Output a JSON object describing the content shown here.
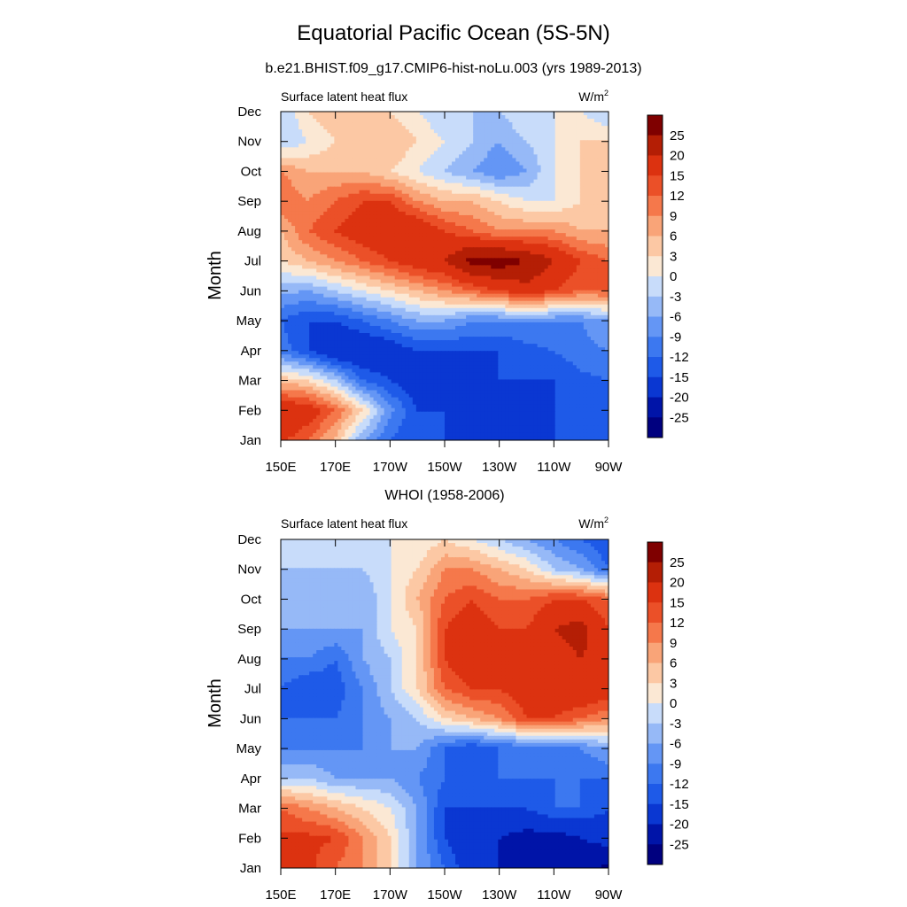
{
  "figure": {
    "title": "Equatorial Pacific Ocean (5S-5N)"
  },
  "chart_data": [
    {
      "type": "heatmap",
      "title": "b.e21.BHIST.f09_g17.CMIP6-hist-noLu.003 (yrs 1989-2013)",
      "variable": "Surface latent heat flux",
      "units_base": "W/m",
      "units_exp": "2",
      "ylabel": "Month",
      "x_ticks": [
        "150E",
        "170E",
        "170W",
        "150W",
        "130W",
        "110W",
        "90W"
      ],
      "x_lon": [
        150,
        170,
        190,
        210,
        230,
        250,
        270
      ],
      "y_ticks": [
        "Jan",
        "Feb",
        "Mar",
        "Apr",
        "May",
        "Jun",
        "Jul",
        "Aug",
        "Sep",
        "Oct",
        "Nov",
        "Dec"
      ],
      "grid": false,
      "rows_jan_to_dec": [
        [
          16,
          12,
          5,
          -6,
          -12,
          -15,
          -15,
          -15,
          -15,
          -15,
          -15,
          -13,
          -12
        ],
        [
          20,
          18,
          12,
          3,
          -8,
          -15,
          -15,
          -18,
          -20,
          -18,
          -15,
          -13,
          -12
        ],
        [
          5,
          3,
          -3,
          -12,
          -15,
          -18,
          -20,
          -20,
          -15,
          -15,
          -15,
          -13,
          -12
        ],
        [
          -10,
          -15,
          -20,
          -20,
          -18,
          -15,
          -15,
          -15,
          -15,
          -13,
          -12,
          -10,
          -9
        ],
        [
          -12,
          -15,
          -15,
          -12,
          -9,
          -6,
          -6,
          -9,
          -9,
          -9,
          -9,
          -9,
          -6
        ],
        [
          -5,
          -6,
          -3,
          0,
          3,
          6,
          9,
          12,
          15,
          18,
          15,
          12,
          12
        ],
        [
          3,
          6,
          9,
          12,
          15,
          18,
          20,
          27,
          28,
          25,
          20,
          15,
          12
        ],
        [
          6,
          12,
          15,
          18,
          20,
          20,
          15,
          12,
          9,
          9,
          9,
          6,
          6
        ],
        [
          12,
          9,
          12,
          15,
          15,
          9,
          6,
          6,
          3,
          0,
          0,
          3,
          3
        ],
        [
          9,
          6,
          6,
          6,
          3,
          0,
          -3,
          -6,
          -9,
          -6,
          0,
          3,
          3
        ],
        [
          -3,
          0,
          3,
          6,
          6,
          3,
          0,
          -3,
          -6,
          -3,
          0,
          3,
          3
        ],
        [
          -3,
          3,
          6,
          6,
          3,
          0,
          -3,
          -3,
          -3,
          0,
          0,
          0,
          -3
        ]
      ],
      "lon_grid": [
        150,
        160,
        170,
        180,
        190,
        200,
        210,
        220,
        230,
        240,
        250,
        260,
        270
      ],
      "colorbar_labels": [
        "25",
        "20",
        "15",
        "12",
        "9",
        "6",
        "3",
        "0",
        "-3",
        "-6",
        "-9",
        "-12",
        "-15",
        "-20",
        "-25"
      ]
    },
    {
      "type": "heatmap",
      "title": "WHOI (1958-2006)",
      "variable": "Surface latent heat flux",
      "units_base": "W/m",
      "units_exp": "2",
      "ylabel": "Month",
      "x_ticks": [
        "150E",
        "170E",
        "170W",
        "150W",
        "130W",
        "110W",
        "90W"
      ],
      "x_lon": [
        150,
        170,
        190,
        210,
        230,
        250,
        270
      ],
      "y_ticks": [
        "Jan",
        "Feb",
        "Mar",
        "Apr",
        "May",
        "Jun",
        "Jul",
        "Aug",
        "Sep",
        "Oct",
        "Nov",
        "Dec"
      ],
      "grid": false,
      "rows_jan_to_dec": [
        [
          15,
          16,
          12,
          9,
          3,
          -6,
          -12,
          -18,
          -20,
          -20,
          -22,
          -24,
          -26
        ],
        [
          16,
          16,
          15,
          9,
          3,
          -6,
          -15,
          -18,
          -20,
          -22,
          -22,
          -20,
          -18
        ],
        [
          12,
          9,
          6,
          3,
          0,
          -6,
          -15,
          -15,
          -15,
          -15,
          -12,
          -12,
          -15
        ],
        [
          -3,
          -3,
          -6,
          -6,
          -6,
          -9,
          -12,
          -15,
          -12,
          -12,
          -12,
          -12,
          -12
        ],
        [
          -9,
          -9,
          -9,
          -9,
          -6,
          -6,
          -12,
          -15,
          -12,
          -12,
          -12,
          -9,
          -6
        ],
        [
          -12,
          -12,
          -12,
          -9,
          -6,
          -3,
          3,
          6,
          9,
          15,
          15,
          12,
          9
        ],
        [
          -12,
          -15,
          -14,
          -9,
          -3,
          3,
          12,
          15,
          15,
          18,
          18,
          20,
          18
        ],
        [
          -9,
          -9,
          -12,
          -6,
          -3,
          3,
          15,
          20,
          20,
          18,
          18,
          20,
          18
        ],
        [
          -6,
          -6,
          -6,
          -6,
          0,
          3,
          15,
          18,
          15,
          15,
          20,
          22,
          15
        ],
        [
          -3,
          -6,
          -6,
          -6,
          0,
          6,
          12,
          15,
          12,
          12,
          15,
          15,
          12
        ],
        [
          -3,
          -3,
          -3,
          -3,
          0,
          3,
          9,
          9,
          6,
          3,
          -3,
          -6,
          -12
        ],
        [
          0,
          -3,
          -3,
          0,
          0,
          0,
          3,
          0,
          -3,
          -6,
          -9,
          -12,
          -15
        ]
      ],
      "lon_grid": [
        150,
        160,
        170,
        180,
        190,
        200,
        210,
        220,
        230,
        240,
        250,
        260,
        270
      ],
      "colorbar_labels": [
        "25",
        "20",
        "15",
        "12",
        "9",
        "6",
        "3",
        "0",
        "-3",
        "-6",
        "-9",
        "-12",
        "-15",
        "-20",
        "-25"
      ]
    }
  ],
  "colors": {
    "levels": [
      -25,
      -20,
      -15,
      -12,
      -9,
      -6,
      -3,
      0,
      3,
      6,
      9,
      12,
      15,
      20,
      25
    ],
    "palette": [
      "#00007f",
      "#0014a8",
      "#0a37d2",
      "#1e5ae8",
      "#3c78f0",
      "#6496f5",
      "#96b9f7",
      "#c8dcfa",
      "#fbe8d4",
      "#fcc8a4",
      "#f9a478",
      "#f5784b",
      "#eb5028",
      "#dc3210",
      "#b41e05",
      "#7f0000"
    ]
  }
}
